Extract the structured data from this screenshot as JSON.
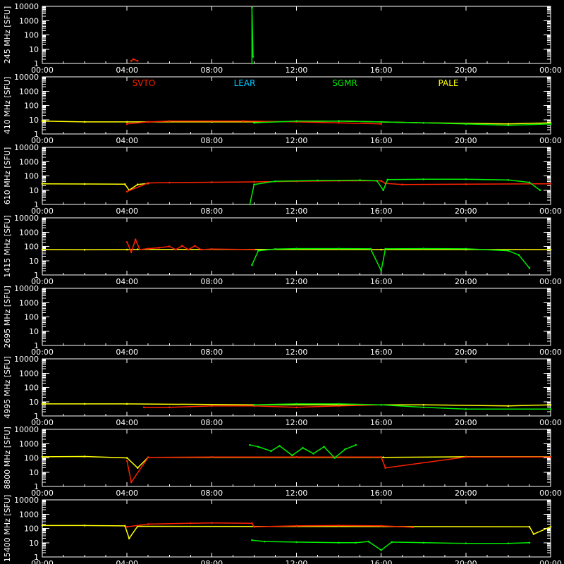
{
  "chart_data": {
    "type": "line",
    "x_ticks": [
      "00:00",
      "04:00",
      "08:00",
      "12:00",
      "16:00",
      "20:00",
      "00:00"
    ],
    "y_ticks": [
      "1",
      "10",
      "100",
      "1000",
      "10000"
    ],
    "y_scale": "log",
    "ylim": [
      1,
      10000
    ],
    "x_range_hours": [
      0,
      24
    ],
    "legend": [
      {
        "name": "SVTO",
        "color": "#ff2200"
      },
      {
        "name": "LEAR",
        "color": "#00c8ff"
      },
      {
        "name": "SGMR",
        "color": "#00ee00"
      },
      {
        "name": "PALE",
        "color": "#ffff00"
      }
    ],
    "panels": [
      {
        "ylabel": "245 MHz [SFU]",
        "series": [
          {
            "name": "SVTO",
            "color": "#ff2200",
            "x": [
              4.2,
              4.3,
              4.5
            ],
            "y": [
              1.5,
              2,
              1.5
            ]
          },
          {
            "name": "SGMR",
            "color": "#00ee00",
            "x": [
              9.9,
              9.9,
              9.95
            ],
            "y": [
              1,
              8000,
              3
            ]
          }
        ]
      },
      {
        "ylabel": "410 MHz [SFU]",
        "series": [
          {
            "name": "PALE",
            "color": "#ffff00",
            "x": [
              0,
              2,
              4,
              8,
              10,
              14,
              18,
              22,
              24
            ],
            "y": [
              8,
              7,
              7,
              7,
              7,
              8,
              6,
              5,
              6
            ]
          },
          {
            "name": "SVTO",
            "color": "#ff2200",
            "x": [
              4,
              5,
              6,
              8,
              9.5,
              12,
              14,
              16
            ],
            "y": [
              5,
              7,
              8,
              8,
              8,
              7,
              6,
              5
            ]
          },
          {
            "name": "SGMR",
            "color": "#00ee00",
            "x": [
              10,
              12,
              14,
              16,
              18,
              20,
              22,
              24
            ],
            "y": [
              6,
              8,
              8,
              7,
              6,
              5,
              4,
              5
            ]
          }
        ]
      },
      {
        "ylabel": "610 MHz [SFU]",
        "series": [
          {
            "name": "PALE",
            "color": "#ffff00",
            "x": [
              0,
              2,
              3.9,
              4.1,
              4.5,
              5
            ],
            "y": [
              28,
              27,
              26,
              10,
              25,
              30
            ]
          },
          {
            "name": "SVTO",
            "color": "#ff2200",
            "x": [
              4,
              5,
              6,
              8,
              10,
              12,
              14,
              16,
              16.2,
              17,
              20,
              24
            ],
            "y": [
              8,
              32,
              34,
              36,
              38,
              42,
              45,
              45,
              30,
              25,
              26,
              28
            ]
          },
          {
            "name": "SGMR",
            "color": "#00ee00",
            "x": [
              9.8,
              10,
              11,
              13,
              15,
              15.8,
              16.1,
              16.3,
              18,
              20,
              22,
              23,
              23.5
            ],
            "y": [
              1,
              25,
              42,
              48,
              50,
              45,
              10,
              55,
              58,
              58,
              52,
              35,
              10
            ]
          }
        ]
      },
      {
        "ylabel": "1415 MHz [SFU]",
        "series": [
          {
            "name": "PALE",
            "color": "#ffff00",
            "x": [
              0,
              2,
              4,
              4.5,
              16,
              20,
              24
            ],
            "y": [
              60,
              58,
              60,
              62,
              60,
              60,
              60
            ]
          },
          {
            "name": "SVTO",
            "color": "#ff2200",
            "x": [
              4,
              4.2,
              4.4,
              4.6,
              5,
              5.5,
              6,
              6.3,
              6.6,
              6.9,
              7.2,
              7.5,
              8,
              10
            ],
            "y": [
              200,
              40,
              300,
              60,
              70,
              80,
              100,
              60,
              110,
              60,
              110,
              60,
              65,
              60
            ]
          },
          {
            "name": "SGMR",
            "color": "#00ee00",
            "x": [
              9.9,
              10.2,
              11,
              12,
              14,
              15.5,
              16,
              16.2,
              18,
              20,
              22,
              22.5,
              23
            ],
            "y": [
              5,
              50,
              65,
              70,
              70,
              68,
              2,
              68,
              70,
              68,
              50,
              25,
              3
            ]
          }
        ]
      },
      {
        "ylabel": "2695 MHz [SFU]",
        "series": []
      },
      {
        "ylabel": "4995 MHz [SFU]",
        "series": [
          {
            "name": "PALE",
            "color": "#ffff00",
            "x": [
              0,
              2,
              4,
              10,
              14,
              18,
              22,
              24
            ],
            "y": [
              7,
              7,
              7,
              6,
              6,
              6,
              5,
              6
            ]
          },
          {
            "name": "SVTO",
            "color": "#ff2200",
            "x": [
              4.8,
              6,
              8,
              10,
              12,
              14,
              16
            ],
            "y": [
              4,
              4,
              5,
              5,
              4,
              5,
              6
            ]
          },
          {
            "name": "SGMR",
            "color": "#00ee00",
            "x": [
              10,
              12,
              14,
              16,
              18,
              20,
              24
            ],
            "y": [
              6,
              7,
              7,
              6,
              4,
              3,
              3
            ]
          }
        ]
      },
      {
        "ylabel": "8800 MHz [SFU]",
        "series": [
          {
            "name": "PALE",
            "color": "#ffff00",
            "x": [
              0,
              2,
              4,
              4.5,
              5,
              16.1,
              20,
              24
            ],
            "y": [
              120,
              125,
              100,
              20,
              110,
              110,
              120,
              120
            ]
          },
          {
            "name": "SVTO",
            "color": "#ff2200",
            "x": [
              4,
              4.2,
              5,
              8,
              12,
              16,
              16.2,
              20,
              24
            ],
            "y": [
              60,
              2,
              110,
              115,
              115,
              115,
              20,
              115,
              115
            ]
          },
          {
            "name": "SGMR",
            "color": "#00ee00",
            "x": [
              9.8,
              10.2,
              10.8,
              11.2,
              11.8,
              12.3,
              12.8,
              13.3,
              13.8,
              14.3,
              14.8
            ],
            "y": [
              800,
              600,
              300,
              700,
              150,
              500,
              200,
              600,
              100,
              400,
              800
            ]
          }
        ]
      },
      {
        "ylabel": "15400 MHz [SFU]",
        "series": [
          {
            "name": "PALE",
            "color": "#ffff00",
            "x": [
              0,
              2,
              3.9,
              4.1,
              4.5,
              23,
              23.2,
              24
            ],
            "y": [
              160,
              160,
              150,
              20,
              140,
              130,
              40,
              130
            ]
          },
          {
            "name": "SVTO",
            "color": "#ff2200",
            "x": [
              4,
              5,
              7,
              8,
              9.9,
              10,
              12,
              14,
              16,
              17.5
            ],
            "y": [
              130,
              200,
              230,
              240,
              230,
              130,
              150,
              160,
              150,
              120
            ]
          },
          {
            "name": "SGMR",
            "color": "#00ee00",
            "x": [
              9.9,
              10.5,
              12,
              14,
              14.8,
              15.4,
              16,
              16.5,
              18,
              20,
              22,
              23
            ],
            "y": [
              15,
              12,
              11,
              10,
              10,
              12,
              3,
              11,
              10,
              9,
              9,
              10
            ]
          }
        ]
      }
    ]
  }
}
